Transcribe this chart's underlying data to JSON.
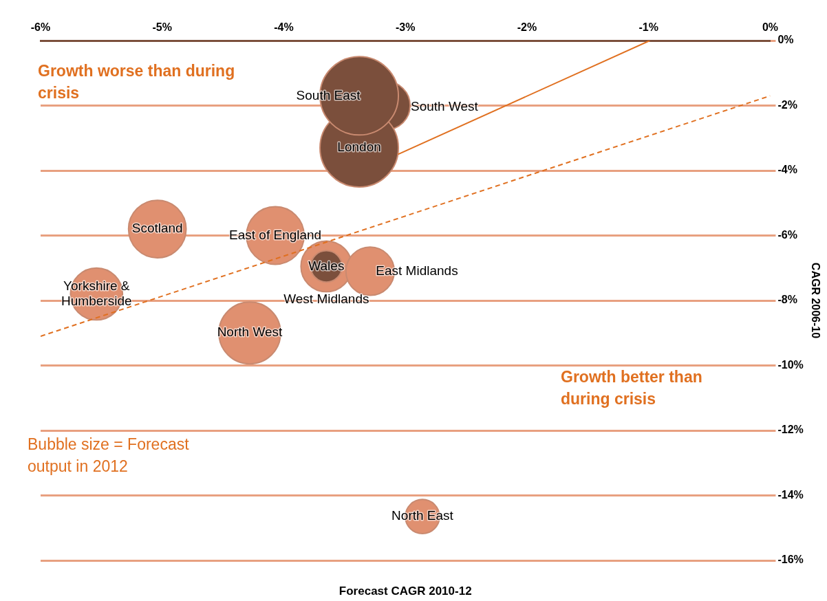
{
  "chart_data": {
    "type": "bubble",
    "xlabel": "Forecast CAGR 2010-12",
    "ylabel": "CAGR 2006-10",
    "xlim": [
      -6,
      0
    ],
    "xticks": [
      {
        "value": -6,
        "label": "-6%"
      },
      {
        "value": -5,
        "label": "-5%"
      },
      {
        "value": -4,
        "label": "-4%"
      },
      {
        "value": -3,
        "label": "-3%"
      },
      {
        "value": -2,
        "label": "-2%"
      },
      {
        "value": -1,
        "label": "-1%"
      },
      {
        "value": 0,
        "label": "0%"
      }
    ],
    "ylim": [
      -16,
      0
    ],
    "yticks": [
      {
        "value": 0,
        "label": "0%"
      },
      {
        "value": -2,
        "label": "-2%"
      },
      {
        "value": -4,
        "label": "-4%"
      },
      {
        "value": -6,
        "label": "-6%"
      },
      {
        "value": -8,
        "label": "-8%"
      },
      {
        "value": -10,
        "label": "-10%"
      },
      {
        "value": -12,
        "label": "-12%"
      },
      {
        "value": -14,
        "label": "-14%"
      },
      {
        "value": -16,
        "label": "-16%"
      }
    ],
    "grid": "y",
    "legend": false,
    "annotations": [
      "Growth worse than during crisis",
      "Growth better than during crisis",
      "Bubble size = Forecast output in 2012"
    ],
    "series": [
      {
        "name": "South West",
        "color": "#7b4f3c",
        "x": [
          -3.16
        ],
        "values": [
          -2.0
        ],
        "sizes": [
          0.38
        ]
      },
      {
        "name": "London",
        "color": "#7b4f3c",
        "x": [
          -3.38
        ],
        "values": [
          -3.3
        ],
        "sizes": [
          1
        ]
      },
      {
        "name": "South East",
        "color": "#7b4f3c",
        "x": [
          -3.38
        ],
        "values": [
          -1.7
        ],
        "sizes": [
          1
        ]
      },
      {
        "name": "Scotland",
        "color": "#e09070",
        "x": [
          -5.04
        ],
        "values": [
          -5.8
        ],
        "sizes": [
          0.54
        ]
      },
      {
        "name": "East of England",
        "color": "#e09070",
        "x": [
          -4.07
        ],
        "values": [
          -6.0
        ],
        "sizes": [
          0.54
        ]
      },
      {
        "name": "West Midlands",
        "color": "#e09070",
        "x": [
          -3.65
        ],
        "values": [
          -6.95
        ],
        "sizes": [
          0.42
        ]
      },
      {
        "name": "Wales",
        "color": "#7b4f3c",
        "x": [
          -3.65
        ],
        "values": [
          -6.95
        ],
        "sizes": [
          0.16
        ]
      },
      {
        "name": "East Midlands",
        "color": "#e09070",
        "x": [
          -3.29
        ],
        "values": [
          -7.1
        ],
        "sizes": [
          0.38
        ]
      },
      {
        "name": "Yorkshire & Humberside",
        "color": "#e09070",
        "x": [
          -5.54
        ],
        "values": [
          -7.8
        ],
        "sizes": [
          0.44
        ]
      },
      {
        "name": "North West",
        "color": "#e09070",
        "x": [
          -4.28
        ],
        "values": [
          -9.0
        ],
        "sizes": [
          0.62
        ]
      },
      {
        "name": "North East",
        "color": "#e09070",
        "x": [
          -2.86
        ],
        "values": [
          -14.65
        ],
        "sizes": [
          0.19
        ]
      },
      {
        "type": "line",
        "color": "#e07020",
        "line_style": "solid",
        "x": [
          -3.06,
          -0.99
        ],
        "values": [
          -3.5,
          0
        ]
      },
      {
        "type": "line",
        "color": "#e07020",
        "line_style": "dashed",
        "x": [
          -6,
          0
        ],
        "values": [
          -9.1,
          -1.7
        ]
      }
    ]
  }
}
